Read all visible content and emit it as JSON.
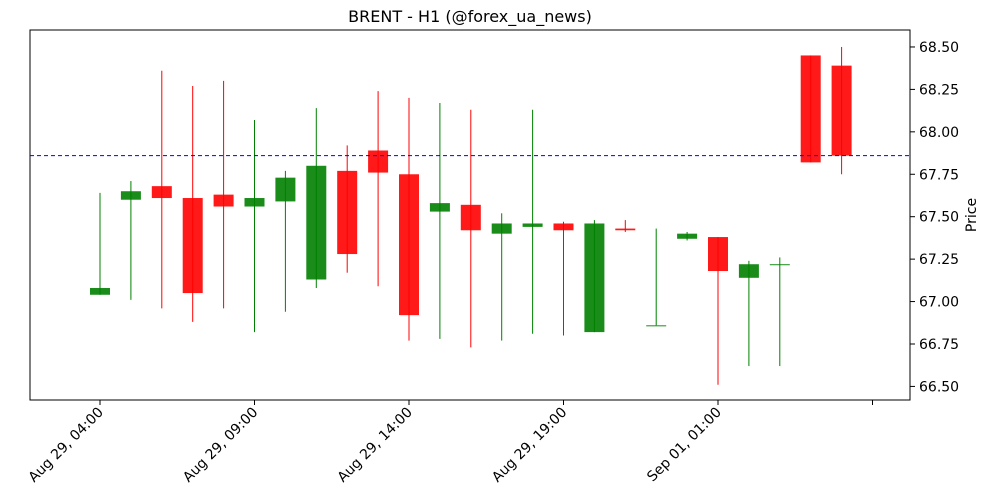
{
  "chart_data": {
    "type": "candlestick",
    "title": "BRENT - H1 (@forex_ua_news)",
    "xlabel": "",
    "ylabel": "Price",
    "ylim": [
      66.42,
      68.6
    ],
    "y_ticks": [
      "66.50",
      "66.75",
      "67.00",
      "67.25",
      "67.50",
      "67.75",
      "68.00",
      "68.25",
      "68.50"
    ],
    "y_tick_values": [
      66.5,
      66.75,
      67.0,
      67.25,
      67.5,
      67.75,
      68.0,
      68.25,
      68.5
    ],
    "x_ticks": [
      {
        "index": 0,
        "label": "Aug 29, 04:00"
      },
      {
        "index": 5,
        "label": "Aug 29, 09:00"
      },
      {
        "index": 10,
        "label": "Aug 29, 14:00"
      },
      {
        "index": 15,
        "label": "Aug 29, 19:00"
      },
      {
        "index": 20,
        "label": "Sep 01, 01:00"
      },
      {
        "index": 25,
        "label": ""
      }
    ],
    "reference_line": {
      "value": 67.86,
      "color": "#0000ff",
      "style": "dashed"
    },
    "colors": {
      "up": "#008000",
      "down": "#ff0000"
    },
    "grid": false,
    "candles": [
      {
        "open": 67.04,
        "high": 67.64,
        "low": 67.04,
        "close": 67.08
      },
      {
        "open": 67.6,
        "high": 67.71,
        "low": 67.01,
        "close": 67.65
      },
      {
        "open": 67.68,
        "high": 68.36,
        "low": 66.96,
        "close": 67.61
      },
      {
        "open": 67.61,
        "high": 68.27,
        "low": 66.88,
        "close": 67.05
      },
      {
        "open": 67.63,
        "high": 68.3,
        "low": 66.96,
        "close": 67.56
      },
      {
        "open": 67.56,
        "high": 68.07,
        "low": 66.82,
        "close": 67.61
      },
      {
        "open": 67.59,
        "high": 67.77,
        "low": 66.94,
        "close": 67.73
      },
      {
        "open": 67.13,
        "high": 68.14,
        "low": 67.08,
        "close": 67.8
      },
      {
        "open": 67.77,
        "high": 67.92,
        "low": 67.17,
        "close": 67.28
      },
      {
        "open": 67.89,
        "high": 68.24,
        "low": 67.09,
        "close": 67.76
      },
      {
        "open": 67.75,
        "high": 68.2,
        "low": 66.77,
        "close": 66.92
      },
      {
        "open": 67.53,
        "high": 68.17,
        "low": 66.78,
        "close": 67.58
      },
      {
        "open": 67.57,
        "high": 68.13,
        "low": 66.73,
        "close": 67.42
      },
      {
        "open": 67.4,
        "high": 67.52,
        "low": 66.77,
        "close": 67.46
      },
      {
        "open": 67.44,
        "high": 68.13,
        "low": 66.81,
        "close": 67.46
      },
      {
        "open": 67.46,
        "high": 67.47,
        "low": 66.8,
        "close": 67.42
      },
      {
        "open": 66.82,
        "high": 67.48,
        "low": 66.82,
        "close": 67.46
      },
      {
        "open": 67.43,
        "high": 67.48,
        "low": 67.41,
        "close": 67.42
      },
      {
        "open": 66.86,
        "high": 67.43,
        "low": 66.86,
        "close": 66.86
      },
      {
        "open": 67.37,
        "high": 67.41,
        "low": 67.36,
        "close": 67.4
      },
      {
        "open": 67.38,
        "high": 67.38,
        "low": 66.51,
        "close": 67.18
      },
      {
        "open": 67.14,
        "high": 67.24,
        "low": 66.62,
        "close": 67.22
      },
      {
        "open": 67.22,
        "high": 67.26,
        "low": 66.62,
        "close": 67.22
      },
      {
        "open": 68.45,
        "high": 68.45,
        "low": 67.82,
        "close": 67.82
      },
      {
        "open": 68.39,
        "high": 68.5,
        "low": 67.75,
        "close": 67.86
      }
    ]
  }
}
